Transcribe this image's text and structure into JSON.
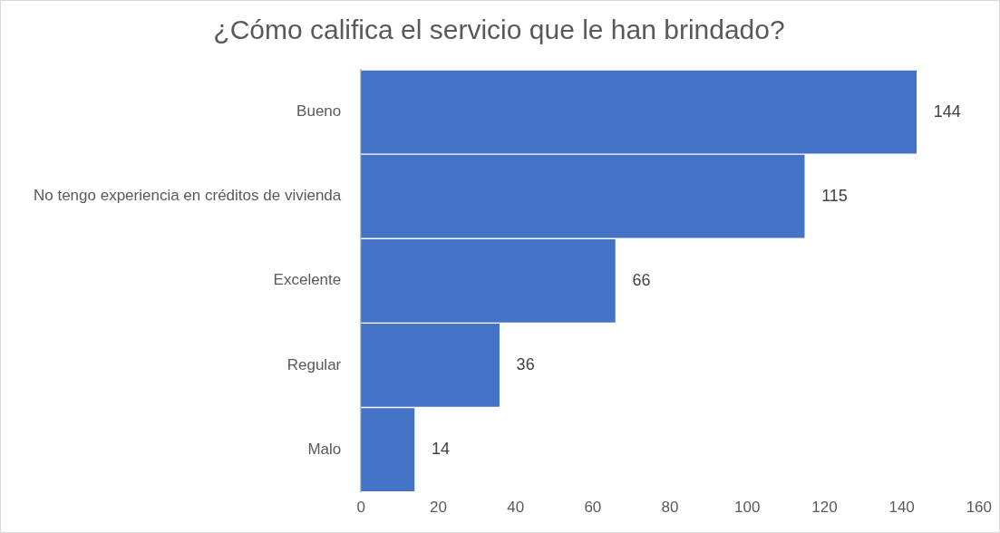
{
  "chart_data": {
    "type": "bar",
    "orientation": "horizontal",
    "title": "¿Cómo califica el servicio que le han brindado?",
    "categories": [
      "Bueno",
      "No tengo experiencia en créditos de vivienda",
      "Excelente",
      "Regular",
      "Malo"
    ],
    "values": [
      144,
      115,
      66,
      36,
      14
    ],
    "color": "#4472c4",
    "xlim": [
      0,
      160
    ],
    "xticks": [
      0,
      20,
      40,
      60,
      80,
      100,
      120,
      140,
      160
    ],
    "grid": false,
    "legend": false,
    "data_labels": true
  }
}
